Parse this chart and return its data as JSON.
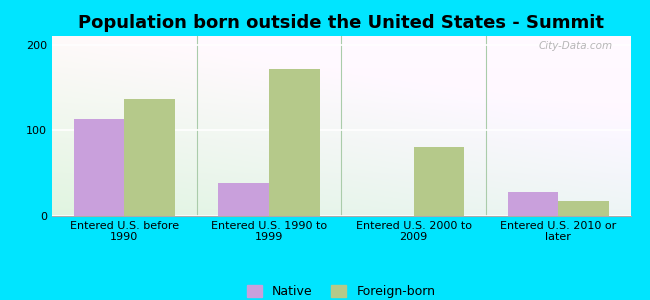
{
  "title": "Population born outside the United States - Summit",
  "categories": [
    "Entered U.S. before\n1990",
    "Entered U.S. 1990 to\n1999",
    "Entered U.S. 2000 to\n2009",
    "Entered U.S. 2010 or\nlater"
  ],
  "native_values": [
    113,
    38,
    0,
    28
  ],
  "foreign_values": [
    137,
    172,
    80,
    18
  ],
  "native_color": "#c9a0dc",
  "foreign_color": "#b5c98a",
  "background_outer": "#00e5ff",
  "ylim": [
    0,
    210
  ],
  "yticks": [
    0,
    100,
    200
  ],
  "bar_width": 0.35,
  "legend_labels": [
    "Native",
    "Foreign-born"
  ],
  "watermark": "City-Data.com",
  "title_fontsize": 13,
  "tick_fontsize": 8,
  "legend_fontsize": 9
}
